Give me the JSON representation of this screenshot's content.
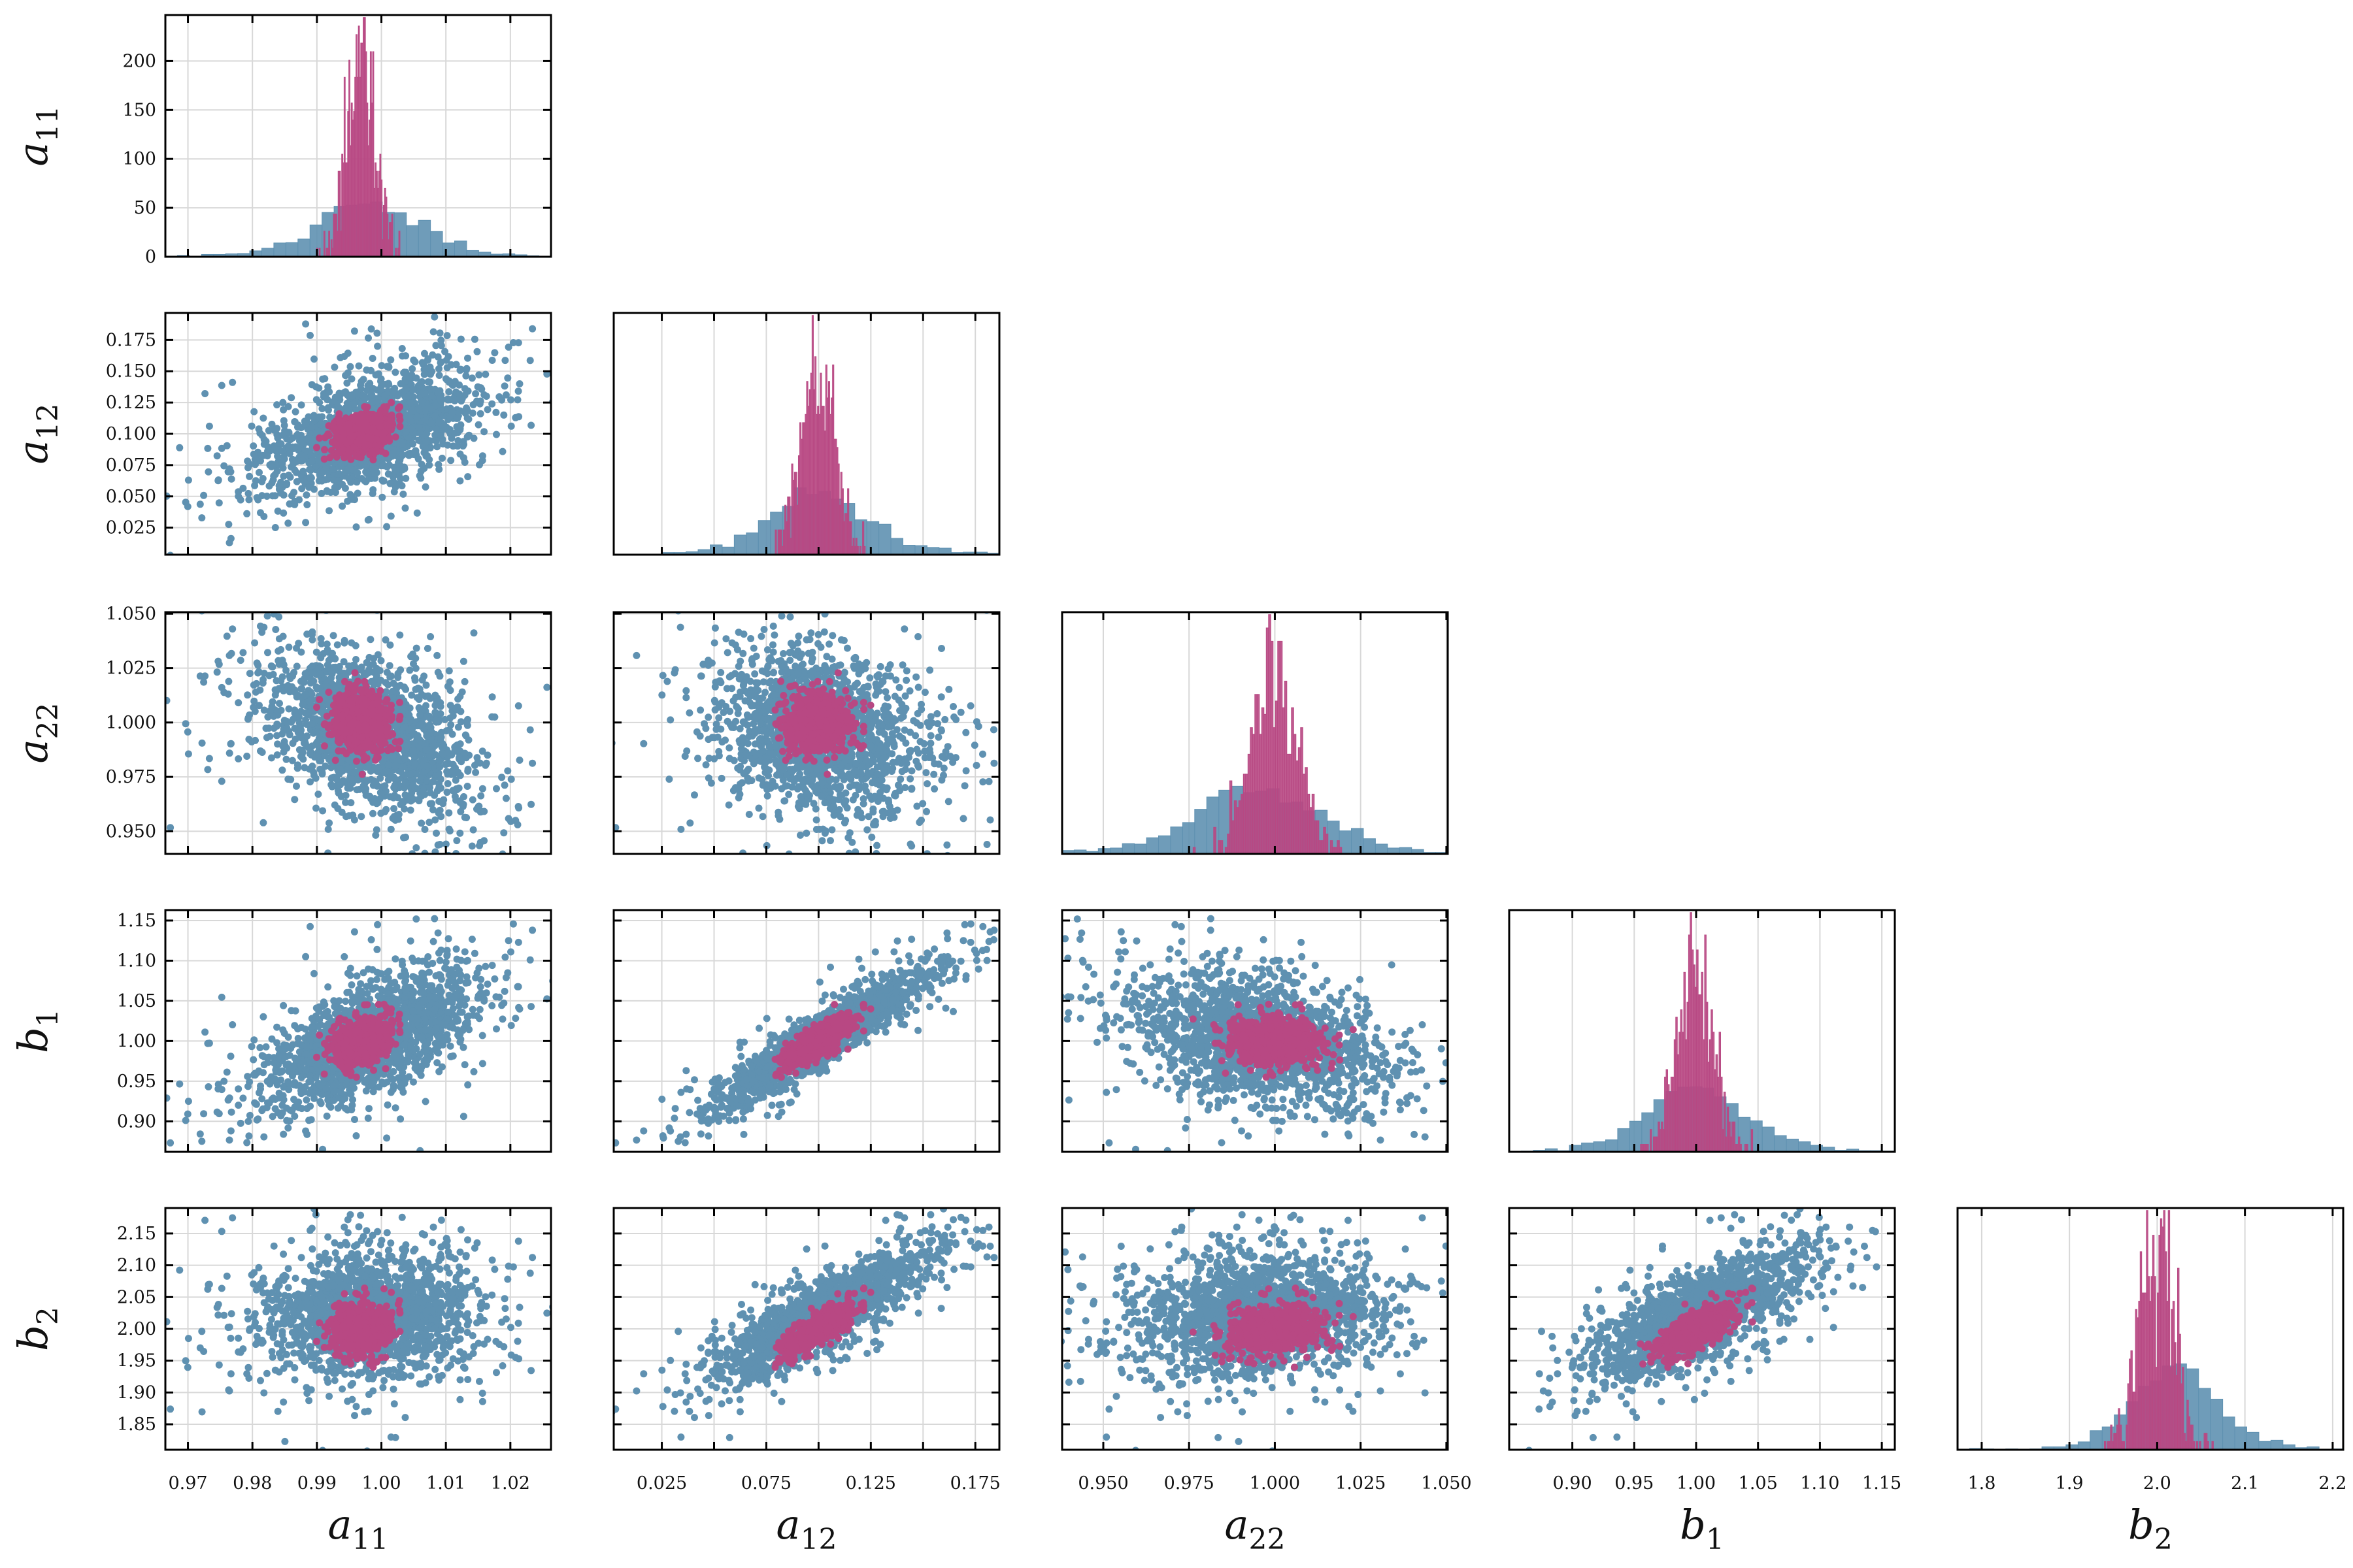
{
  "chart_data": {
    "type": "scatter",
    "layout": "corner-plot",
    "grid": true,
    "colors": {
      "wide_sample": "#5f91b1",
      "narrow_sample": "#b84883",
      "grid": "#d8d8d8",
      "axes": "#000000"
    },
    "parameters": [
      {
        "symbol": "a",
        "subscript": "11",
        "xlim": [
          0.9665,
          1.0263
        ],
        "xticks": [
          0.97,
          0.98,
          0.99,
          1.0,
          1.01,
          1.02
        ],
        "xtick_labels": [
          "0.97",
          "0.98",
          "0.99",
          "1.00",
          "1.01",
          "1.02"
        ],
        "ylim": [
          0,
          247
        ],
        "yticks": [
          0,
          50,
          100,
          150,
          200
        ],
        "ytick_labels": [
          "0",
          "50",
          "100",
          "150",
          "200"
        ]
      },
      {
        "symbol": "a",
        "subscript": "12",
        "xlim": [
          0.002,
          0.1865
        ],
        "xticks": [
          0.025,
          0.05,
          0.075,
          0.1,
          0.125,
          0.15,
          0.175
        ],
        "xtick_labels": [
          "0.025",
          "",
          "0.075",
          "",
          "0.125",
          "",
          "0.175"
        ],
        "ylim": [
          0.0034,
          0.1966
        ],
        "yticks": [
          0.025,
          0.05,
          0.075,
          0.1,
          0.125,
          0.15,
          0.175
        ],
        "ytick_labels": [
          "0.025",
          "0.050",
          "0.075",
          "0.100",
          "0.125",
          "0.150",
          "0.175"
        ]
      },
      {
        "symbol": "a",
        "subscript": "22",
        "xlim": [
          0.938,
          1.0504
        ],
        "xticks": [
          0.95,
          0.975,
          1.0,
          1.025,
          1.05
        ],
        "xtick_labels": [
          "0.950",
          "0.975",
          "1.000",
          "1.025",
          "1.050"
        ],
        "ylim": [
          0.9396,
          1.0507
        ],
        "yticks": [
          0.95,
          0.975,
          1.0,
          1.025,
          1.05
        ],
        "ytick_labels": [
          "0.950",
          "0.975",
          "1.000",
          "1.025",
          "1.050"
        ]
      },
      {
        "symbol": "b",
        "subscript": "1",
        "xlim": [
          0.849,
          1.1605
        ],
        "xticks": [
          0.9,
          0.95,
          1.0,
          1.05,
          1.1,
          1.15
        ],
        "xtick_labels": [
          "0.90",
          "0.95",
          "1.00",
          "1.05",
          "1.10",
          "1.15"
        ],
        "ylim": [
          0.862,
          1.163
        ],
        "yticks": [
          0.9,
          0.95,
          1.0,
          1.05,
          1.1,
          1.15
        ],
        "ytick_labels": [
          "0.90",
          "0.95",
          "1.00",
          "1.05",
          "1.10",
          "1.15"
        ]
      },
      {
        "symbol": "b",
        "subscript": "2",
        "xlim": [
          1.7725,
          2.212
        ],
        "xticks": [
          1.8,
          1.9,
          2.0,
          2.1,
          2.2
        ],
        "xtick_labels": [
          "1.8",
          "1.9",
          "2.0",
          "2.1",
          "2.2"
        ],
        "ylim": [
          1.81,
          2.19
        ],
        "yticks": [
          1.85,
          1.9,
          1.95,
          2.0,
          2.05,
          2.1,
          2.15
        ],
        "ytick_labels": [
          "1.85",
          "1.90",
          "1.95",
          "2.00",
          "2.05",
          "2.10",
          "2.15"
        ]
      }
    ],
    "samples": [
      {
        "color": "#5f91b1",
        "mean": [
          0.998,
          0.1,
          0.995,
          1.0,
          2.02
        ],
        "std": [
          0.0075,
          0.024,
          0.017,
          0.04,
          0.048
        ],
        "corr": [
          [
            1.0,
            0.5,
            -0.4,
            0.6,
            0.1
          ],
          [
            0.5,
            1.0,
            -0.2,
            0.93,
            0.85
          ],
          [
            -0.4,
            -0.2,
            1.0,
            -0.35,
            0.1
          ],
          [
            0.6,
            0.93,
            -0.35,
            1.0,
            0.75
          ],
          [
            0.1,
            0.85,
            0.1,
            0.75,
            1.0
          ]
        ]
      },
      {
        "color": "#b84883",
        "mean": [
          0.997,
          0.1,
          1.0,
          1.0,
          2.0
        ],
        "std": [
          0.0022,
          0.008,
          0.0065,
          0.015,
          0.02
        ],
        "corr": [
          [
            1.0,
            0.3,
            -0.1,
            0.35,
            0.1
          ],
          [
            0.3,
            1.0,
            0.0,
            0.8,
            0.8
          ],
          [
            -0.1,
            0.0,
            1.0,
            -0.1,
            0.2
          ],
          [
            0.35,
            0.8,
            -0.1,
            1.0,
            0.7
          ],
          [
            0.1,
            0.8,
            0.2,
            0.7,
            1.0
          ]
        ]
      }
    ]
  }
}
